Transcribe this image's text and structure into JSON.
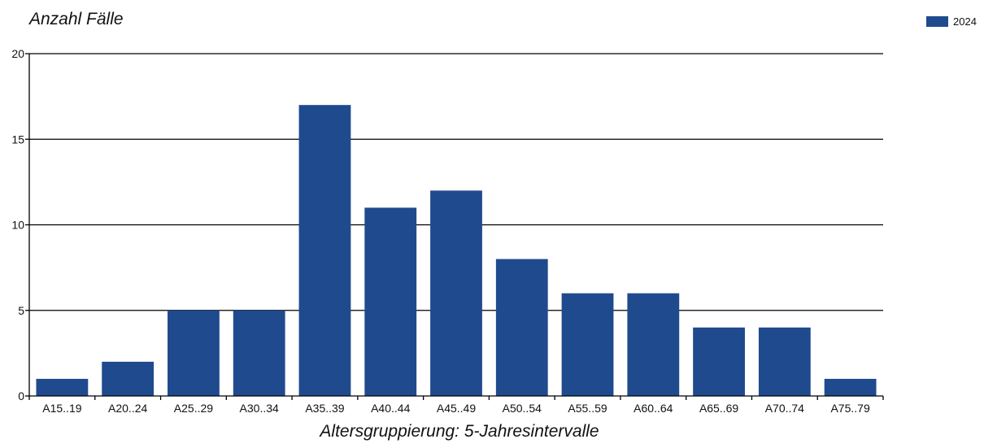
{
  "chart_data": {
    "type": "bar",
    "ylabel": "Anzahl Fälle",
    "xlabel": "Altersgruppierung: 5-Jahresintervalle",
    "categories": [
      "A15..19",
      "A20..24",
      "A25..29",
      "A30..34",
      "A35..39",
      "A40..44",
      "A45..49",
      "A50..54",
      "A55..59",
      "A60..64",
      "A65..69",
      "A70..74",
      "A75..79"
    ],
    "series": [
      {
        "name": "2024",
        "color": "#1f4a8e",
        "values": [
          1,
          2,
          5,
          5,
          17,
          11,
          12,
          8,
          6,
          6,
          4,
          4,
          1
        ]
      }
    ],
    "ylim": [
      0,
      20
    ],
    "yticks": [
      0,
      5,
      10,
      15,
      20
    ],
    "grid": true,
    "legend_position": "top-right"
  }
}
